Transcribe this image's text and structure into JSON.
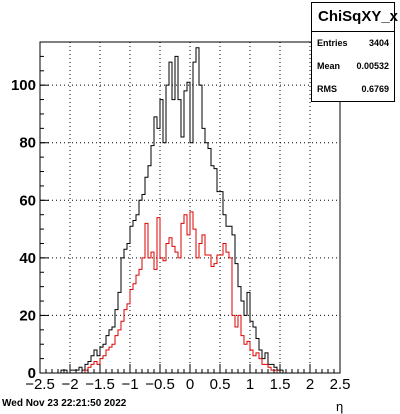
{
  "chart_data": {
    "type": "histogram",
    "title": "ChiSqXY_x",
    "xlabel": "η",
    "ylabel": "",
    "xlim": [
      -2.5,
      2.5
    ],
    "ylim": [
      0,
      115
    ],
    "grid": true,
    "x_ticks": [
      "−2.5",
      "−2",
      "−1.5",
      "−1",
      "−0.5",
      "0",
      "0.5",
      "1",
      "1.5",
      "2",
      "2.5"
    ],
    "y_ticks": [
      "0",
      "20",
      "40",
      "60",
      "80",
      "100"
    ],
    "bin_edges_range": [
      -2.5,
      2.5
    ],
    "n_bins": 100,
    "series": [
      {
        "color": "#000000",
        "values": [
          0,
          0,
          0,
          0,
          0,
          0,
          0,
          1,
          1,
          0,
          1,
          1,
          1,
          2,
          1,
          3,
          4,
          6,
          8,
          6,
          9,
          10,
          13,
          15,
          16,
          22,
          28,
          40,
          43,
          45,
          51,
          53,
          55,
          60,
          62,
          68,
          72,
          79,
          89,
          85,
          95,
          80,
          100,
          108,
          95,
          110,
          95,
          82,
          98,
          101,
          80,
          108,
          113,
          100,
          85,
          80,
          78,
          72,
          71,
          63,
          63,
          55,
          51,
          51,
          48,
          38,
          30,
          25,
          20,
          28,
          18,
          16,
          12,
          8,
          5,
          7,
          3,
          3,
          2,
          1,
          1,
          0,
          0,
          0,
          0,
          0,
          0,
          0,
          0,
          0,
          0,
          0,
          0,
          0,
          0,
          0,
          0,
          0,
          0,
          0
        ],
        "comment_only": ""
      },
      {
        "color": "#dd0000",
        "values": [
          0,
          0,
          0,
          0,
          0,
          0,
          0,
          0,
          0,
          0,
          0,
          0,
          0,
          0,
          0,
          1,
          2,
          3,
          4,
          3,
          5,
          6,
          8,
          9,
          10,
          13,
          15,
          18,
          22,
          24,
          29,
          31,
          34,
          36,
          40,
          52,
          40,
          42,
          36,
          54,
          40,
          39,
          45,
          47,
          44,
          42,
          40,
          52,
          55,
          48,
          56,
          50,
          40,
          45,
          48,
          41,
          41,
          37,
          38,
          41,
          41,
          45,
          42,
          40,
          20,
          16,
          20,
          13,
          10,
          11,
          8,
          6,
          7,
          5,
          3,
          3,
          2,
          1,
          1,
          0,
          0,
          0,
          0,
          0,
          0,
          0,
          0,
          0,
          0,
          0,
          0,
          0,
          0,
          0,
          0,
          0,
          0,
          0,
          0,
          0
        ]
      }
    ]
  },
  "stats": {
    "title": "ChiSqXY_x",
    "rows": [
      {
        "label": "Entries",
        "value": "3404"
      },
      {
        "label": "Mean",
        "value": "0.00532"
      },
      {
        "label": "RMS",
        "value": "0.6769"
      }
    ]
  },
  "timestamp": "Wed Nov 23 22:21:50 2022"
}
